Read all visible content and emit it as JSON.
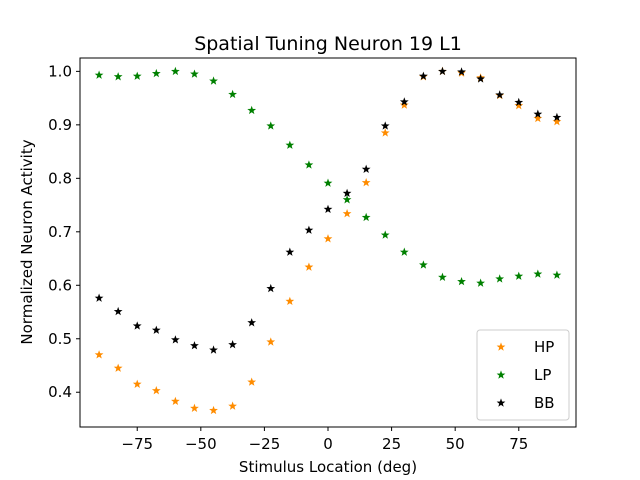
{
  "chart_data": {
    "type": "scatter",
    "title": "Spatial Tuning Neuron 19 L1",
    "xlabel": "Stimulus Location (deg)",
    "ylabel": "Normalized Neuron Activity",
    "xlim": [
      -97.5,
      97.5
    ],
    "ylim": [
      0.335,
      1.025
    ],
    "xticks": [
      -75,
      -50,
      -25,
      0,
      25,
      50,
      75
    ],
    "xtick_labels": [
      "−75",
      "−50",
      "−25",
      "0",
      "25",
      "50",
      "75"
    ],
    "yticks": [
      0.4,
      0.5,
      0.6,
      0.7,
      0.8,
      0.9,
      1.0
    ],
    "ytick_labels": [
      "0.4",
      "0.5",
      "0.6",
      "0.7",
      "0.8",
      "0.9",
      "1.0"
    ],
    "grid": false,
    "legend_position": "lower-right",
    "marker": "star",
    "x": [
      -90,
      -82.5,
      -75,
      -67.5,
      -60,
      -52.5,
      -45,
      -37.5,
      -30,
      -22.5,
      -15,
      -7.5,
      0,
      7.5,
      15,
      22.5,
      30,
      37.5,
      45,
      52.5,
      60,
      67.5,
      75,
      82.5,
      90
    ],
    "series": [
      {
        "name": "HP",
        "color": "#ff8c00",
        "values": [
          0.47,
          0.445,
          0.415,
          0.403,
          0.383,
          0.37,
          0.366,
          0.374,
          0.419,
          0.494,
          0.57,
          0.634,
          0.687,
          0.734,
          0.792,
          0.885,
          0.937,
          0.99,
          1.0,
          0.997,
          0.988,
          0.955,
          0.936,
          0.912,
          0.906
        ]
      },
      {
        "name": "LP",
        "color": "#008000",
        "values": [
          0.993,
          0.99,
          0.991,
          0.996,
          1.0,
          0.995,
          0.982,
          0.957,
          0.927,
          0.898,
          0.862,
          0.825,
          0.791,
          0.76,
          0.727,
          0.694,
          0.662,
          0.638,
          0.615,
          0.607,
          0.604,
          0.612,
          0.617,
          0.621,
          0.619
        ]
      },
      {
        "name": "BB",
        "color": "#000000",
        "values": [
          0.576,
          0.551,
          0.524,
          0.516,
          0.498,
          0.487,
          0.479,
          0.489,
          0.53,
          0.594,
          0.662,
          0.703,
          0.742,
          0.772,
          0.817,
          0.898,
          0.943,
          0.991,
          1.0,
          0.999,
          0.986,
          0.956,
          0.942,
          0.92,
          0.914
        ]
      }
    ]
  }
}
